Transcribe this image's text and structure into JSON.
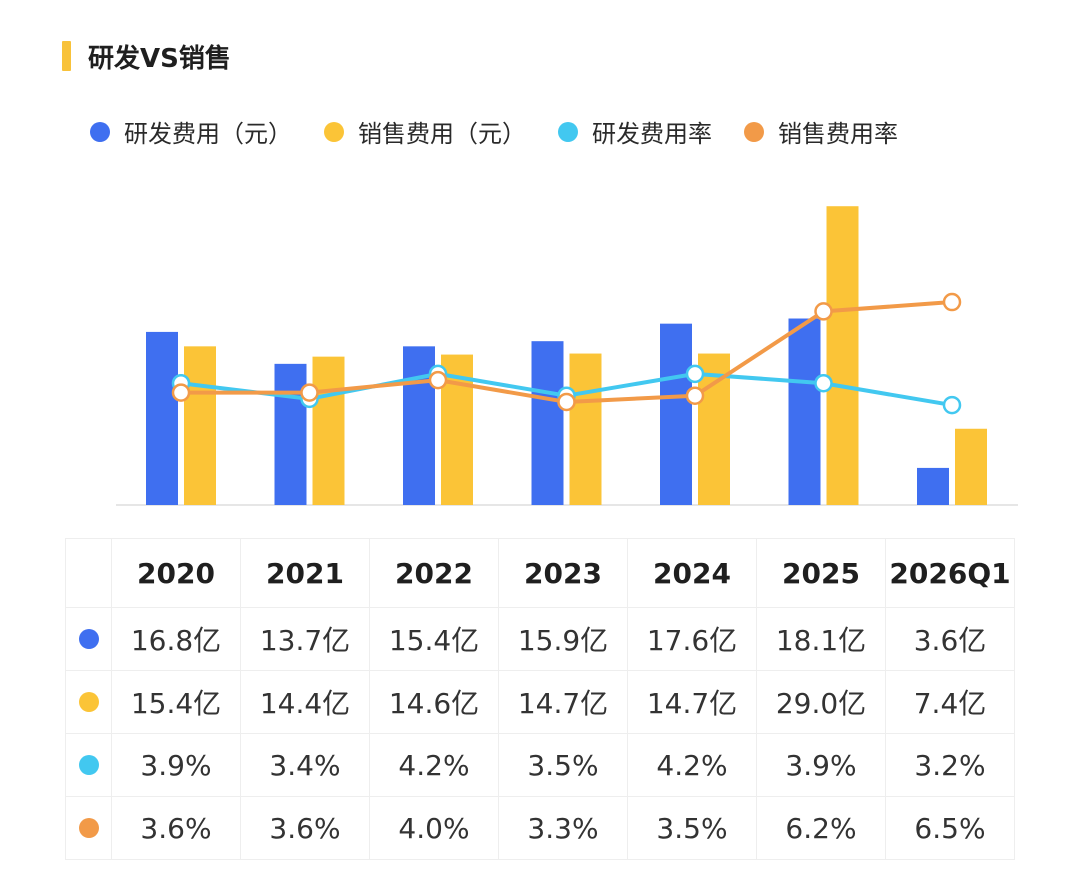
{
  "title": "研发VS销售",
  "colors": {
    "rd_amount": "#3f6ff0",
    "sales_amount": "#fbc437",
    "rd_rate": "#42c8f0",
    "sales_rate": "#f29a48",
    "title_accent": "#f8c23a"
  },
  "chart_data": {
    "type": "bar",
    "combo": "bar+line",
    "categories": [
      "2020",
      "2021",
      "2022",
      "2023",
      "2024",
      "2025",
      "2026Q1"
    ],
    "series": [
      {
        "name": "研发费用（元）",
        "type": "bar",
        "axis": "left",
        "unit": "亿",
        "values": [
          16.8,
          13.7,
          15.4,
          15.9,
          17.6,
          18.1,
          3.6
        ]
      },
      {
        "name": "销售费用（元）",
        "type": "bar",
        "axis": "left",
        "unit": "亿",
        "values": [
          15.4,
          14.4,
          14.6,
          14.7,
          14.7,
          29.0,
          7.4
        ]
      },
      {
        "name": "研发费用率",
        "type": "line",
        "axis": "right",
        "unit": "%",
        "values": [
          3.9,
          3.4,
          4.2,
          3.5,
          4.2,
          3.9,
          3.2
        ]
      },
      {
        "name": "销售费用率",
        "type": "line",
        "axis": "right",
        "unit": "%",
        "values": [
          3.6,
          3.6,
          4.0,
          3.3,
          3.5,
          6.2,
          6.5
        ]
      }
    ],
    "ylim_left": [
      0,
      29.7
    ],
    "ylim_right": [
      0,
      9.8
    ],
    "legend_position": "top-left",
    "grid": false
  },
  "table": {
    "headers": [
      "2020",
      "2021",
      "2022",
      "2023",
      "2024",
      "2025",
      "2026Q1"
    ],
    "rows": [
      {
        "cells": [
          "16.8亿",
          "13.7亿",
          "15.4亿",
          "15.9亿",
          "17.6亿",
          "18.1亿",
          "3.6亿"
        ]
      },
      {
        "cells": [
          "15.4亿",
          "14.4亿",
          "14.6亿",
          "14.7亿",
          "14.7亿",
          "29.0亿",
          "7.4亿"
        ]
      },
      {
        "cells": [
          "3.9%",
          "3.4%",
          "4.2%",
          "3.5%",
          "4.2%",
          "3.9%",
          "3.2%"
        ]
      },
      {
        "cells": [
          "3.6%",
          "3.6%",
          "4.0%",
          "3.3%",
          "3.5%",
          "6.2%",
          "6.5%"
        ]
      }
    ]
  }
}
